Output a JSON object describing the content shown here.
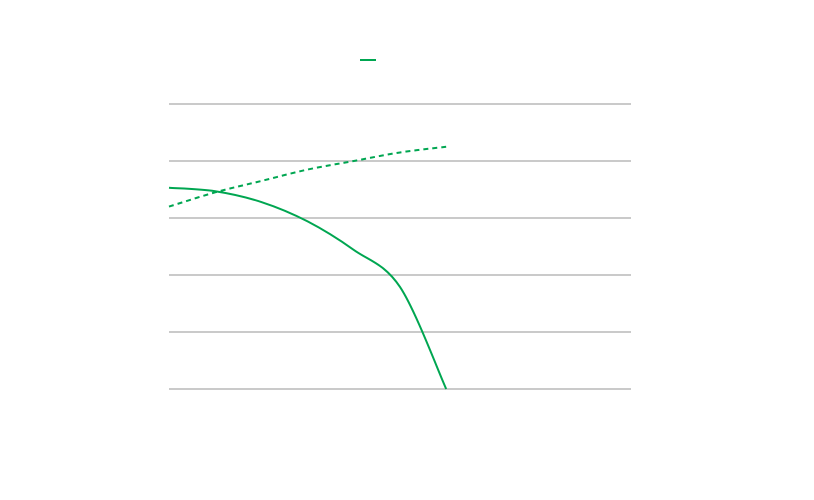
{
  "chart_data": {
    "type": "line",
    "grid": true,
    "legend_placement": "top-center",
    "x_range": [
      0,
      10
    ],
    "ylim": [
      0,
      5
    ],
    "gridlines_y": [
      0,
      1,
      2,
      3,
      4,
      5
    ],
    "series": [
      {
        "style": "solid",
        "color": "#00a651",
        "legend": true,
        "x": [
          0,
          1,
          2,
          3,
          4,
          5,
          6
        ],
        "values": [
          3.53,
          3.47,
          3.28,
          2.94,
          2.44,
          1.79,
          0.0
        ]
      },
      {
        "style": "dashed",
        "color": "#00a651",
        "legend": false,
        "x": [
          0,
          1,
          2,
          3,
          4,
          5,
          6
        ],
        "values": [
          3.2,
          3.45,
          3.65,
          3.85,
          4.0,
          4.15,
          4.25
        ]
      }
    ]
  },
  "colors": {
    "gridline": "#b8b8b8",
    "series": "#00a651",
    "background": "#ffffff"
  }
}
